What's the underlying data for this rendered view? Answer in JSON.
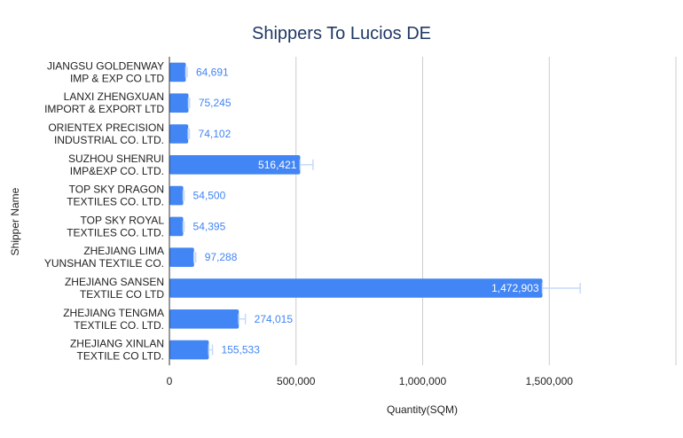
{
  "chart_data": {
    "type": "bar",
    "orientation": "horizontal",
    "title": "Shippers To Lucios DE",
    "xlabel": "Quantity(SQM)",
    "ylabel": "Shipper Name",
    "categories": [
      [
        "JIANGSU GOLDENWAY",
        "IMP & EXP CO LTD"
      ],
      [
        "LANXI ZHENGXUAN",
        "IMPORT & EXPORT LTD"
      ],
      [
        "ORIENTEX PRECISION",
        "INDUSTRIAL CO. LTD."
      ],
      [
        "SUZHOU SHENRUI",
        "IMP&EXP CO. LTD."
      ],
      [
        "TOP SKY DRAGON",
        "TEXTILES CO. LTD."
      ],
      [
        "TOP SKY ROYAL",
        "TEXTILES CO. LTD."
      ],
      [
        "ZHEJIANG LIMA",
        "YUNSHAN TEXTILE CO."
      ],
      [
        "ZHEJIANG SANSEN",
        "TEXTILE CO LTD"
      ],
      [
        "ZHEJIANG TENGMA",
        "TEXTILE CO. LTD."
      ],
      [
        "ZHEJIANG XINLAN",
        "TEXTILE CO LTD."
      ]
    ],
    "values": [
      64691,
      75245,
      74102,
      516421,
      54500,
      54395,
      97288,
      1472903,
      274015,
      155533
    ],
    "value_labels": [
      "64,691",
      "75,245",
      "74,102",
      "516,421",
      "54,500",
      "54,395",
      "97,288",
      "1,472,903",
      "274,015",
      "155,533"
    ],
    "error_bars": [
      {
        "low": 64691,
        "high": 70000
      },
      {
        "low": 75245,
        "high": 80000
      },
      {
        "low": 74102,
        "high": 79000
      },
      {
        "low": 516421,
        "high": 567000
      },
      {
        "low": 54500,
        "high": 58000
      },
      {
        "low": 54395,
        "high": 58000
      },
      {
        "low": 97288,
        "high": 104000
      },
      {
        "low": 1472903,
        "high": 1622000
      },
      {
        "low": 274015,
        "high": 300000
      },
      {
        "low": 155533,
        "high": 170000
      }
    ],
    "xlim": [
      0,
      2000000
    ],
    "xticks": [
      0,
      500000,
      1000000,
      1500000
    ],
    "xtick_labels": [
      "0",
      "500,000",
      "1,000,000",
      "1,500,000"
    ],
    "grid": true,
    "legend": "none",
    "colors": {
      "bar": "#4285f4",
      "error_bar": "#c6dafc",
      "grid": "#cccccc",
      "axis": "#333333",
      "title": "#1f3864",
      "label_inside": "#ffffff",
      "label_outside": "#4285f4"
    }
  }
}
